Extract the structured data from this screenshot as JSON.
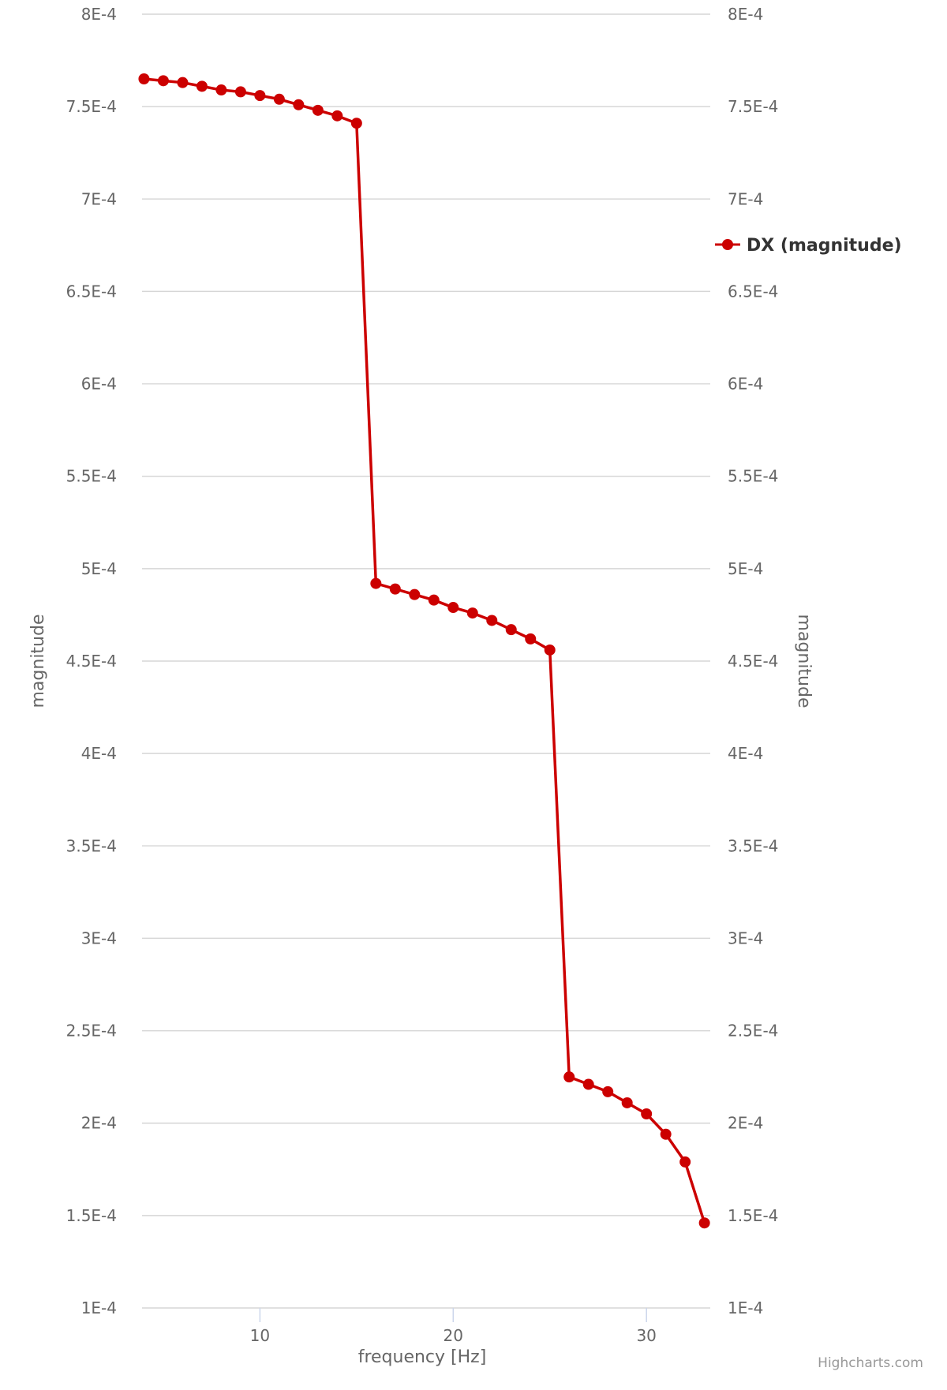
{
  "chart_data": {
    "type": "line",
    "xlabel": "frequency [Hz]",
    "ylabel": "magnitude",
    "ylabel_right": "magnitude",
    "xlim": [
      3.9,
      33.3
    ],
    "ylim": [
      0.0001,
      0.0008
    ],
    "x_ticks": [
      10,
      20,
      30
    ],
    "y_ticks": [
      "1E-4",
      "1.5E-4",
      "2E-4",
      "2.5E-4",
      "3E-4",
      "3.5E-4",
      "4E-4",
      "4.5E-4",
      "5E-4",
      "5.5E-4",
      "6E-4",
      "6.5E-4",
      "7E-4",
      "7.5E-4",
      "8E-4"
    ],
    "grid": true,
    "legend_position": "right",
    "series": [
      {
        "name": "DX (magnitude)",
        "color": "#cc0000",
        "x": [
          4,
          5,
          6,
          7,
          8,
          9,
          10,
          11,
          12,
          13,
          14,
          15,
          16,
          17,
          18,
          19,
          20,
          21,
          22,
          23,
          24,
          25,
          26,
          27,
          28,
          29,
          30,
          31,
          32,
          33
        ],
        "values": [
          0.000765,
          0.000764,
          0.000763,
          0.000761,
          0.000759,
          0.000758,
          0.000756,
          0.000754,
          0.000751,
          0.000748,
          0.000745,
          0.000741,
          0.000492,
          0.000489,
          0.000486,
          0.000483,
          0.000479,
          0.000476,
          0.000472,
          0.000467,
          0.000462,
          0.000456,
          0.000225,
          0.000221,
          0.000217,
          0.000211,
          0.000205,
          0.000194,
          0.000179,
          0.000146
        ]
      }
    ]
  },
  "credits": "Highcharts.com"
}
